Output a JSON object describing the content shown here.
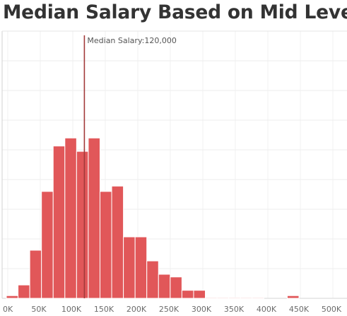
{
  "chart_data": {
    "type": "bar",
    "title": "Median Salary Based on Mid Level",
    "xlabel": "",
    "ylabel": "",
    "x_tick_labels": [
      "0K",
      "50K",
      "100K",
      "150K",
      "200K",
      "250K",
      "300K",
      "350K",
      "400K",
      "450K",
      "500K"
    ],
    "xlim": [
      0,
      525000
    ],
    "bin_width": 18000,
    "bins": [
      {
        "start": 0,
        "value": 1
      },
      {
        "start": 18000,
        "value": 5
      },
      {
        "start": 36000,
        "value": 18
      },
      {
        "start": 54000,
        "value": 40
      },
      {
        "start": 72000,
        "value": 57
      },
      {
        "start": 90000,
        "value": 60
      },
      {
        "start": 108000,
        "value": 55
      },
      {
        "start": 126000,
        "value": 60
      },
      {
        "start": 144000,
        "value": 40
      },
      {
        "start": 162000,
        "value": 42
      },
      {
        "start": 180000,
        "value": 23
      },
      {
        "start": 198000,
        "value": 23
      },
      {
        "start": 216000,
        "value": 14
      },
      {
        "start": 234000,
        "value": 9
      },
      {
        "start": 252000,
        "value": 8
      },
      {
        "start": 270000,
        "value": 3
      },
      {
        "start": 288000,
        "value": 3
      },
      {
        "start": 306000,
        "value": 0.3
      },
      {
        "start": 324000,
        "value": 0.3
      },
      {
        "start": 342000,
        "value": 0.3
      },
      {
        "start": 360000,
        "value": 0.3
      },
      {
        "start": 378000,
        "value": 0.3
      },
      {
        "start": 432000,
        "value": 1
      }
    ],
    "ylim": [
      0,
      100
    ],
    "bar_color": "#e15759",
    "reference_line": {
      "value": 120000,
      "label": "Median Salary:120,000",
      "color": "#a33a3a"
    },
    "grid": true
  }
}
